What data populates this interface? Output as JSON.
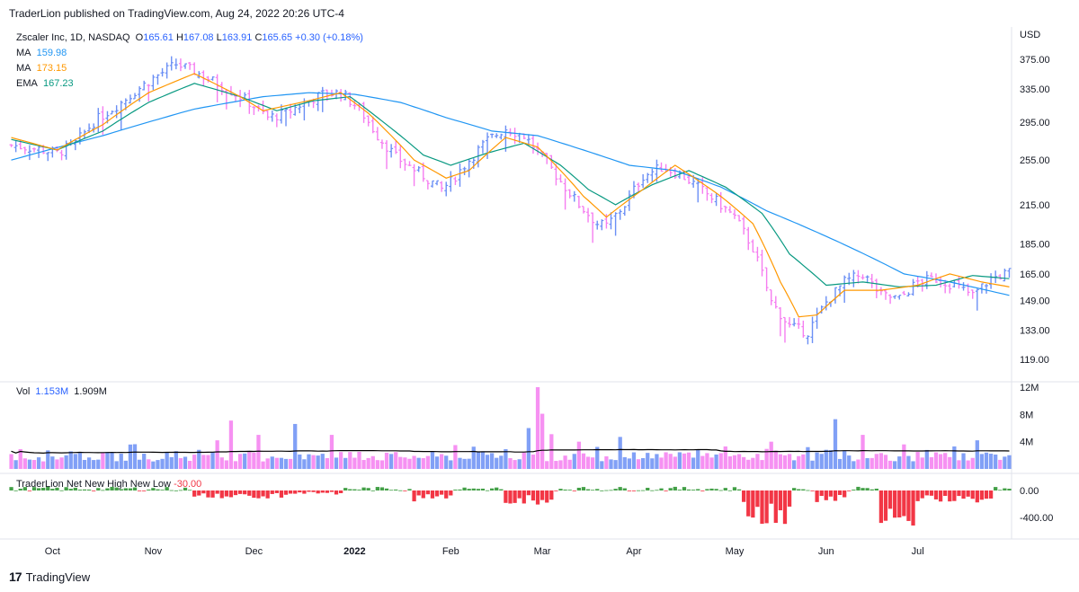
{
  "header": {
    "published": "TraderLion published on TradingView.com, Aug 24, 2022 20:26 UTC-4"
  },
  "symbol": {
    "name": "Zscaler Inc, 1D, NASDAQ",
    "o_label": "O",
    "open": "165.61",
    "h_label": "H",
    "high": "167.08",
    "l_label": "L",
    "low": "163.91",
    "c_label": "C",
    "close": "165.65",
    "change": "+0.30 (+0.18%)"
  },
  "indicators": [
    {
      "label": "MA",
      "value": "159.98",
      "color": "#2196f3"
    },
    {
      "label": "MA",
      "value": "173.15",
      "color": "#ff9800"
    },
    {
      "label": "EMA",
      "value": "167.23",
      "color": "#089981"
    }
  ],
  "volume": {
    "label": "Vol",
    "value1": "1.153M",
    "value2": "1.909M"
  },
  "nnhl": {
    "label": "TraderLion Net New High New Low",
    "value": "-30.00"
  },
  "currency": "USD",
  "footer": {
    "brand": "TradingView",
    "mark": "17"
  },
  "colors": {
    "up": "#6b8ff5",
    "down": "#f57ef0",
    "ma50": "#2196f3",
    "ma10": "#ff9800",
    "ema21": "#089981",
    "posbar": "#43a047",
    "negbar": "#f23645",
    "volma": "#000000"
  },
  "chart_data": {
    "type": "ohlc",
    "title": "Zscaler Inc, 1D, NASDAQ",
    "price_axis": {
      "ticks": [
        375.0,
        335.0,
        295.0,
        255.0,
        215.0,
        185.0,
        165.0,
        149.0,
        133.0,
        119.0
      ],
      "labels": [
        "375.00",
        "335.00",
        "295.00",
        "255.00",
        "215.00",
        "185.00",
        "165.00",
        "149.00",
        "133.00",
        "119.00"
      ],
      "scale": "log"
    },
    "volume_axis": {
      "ticks": [
        12,
        8,
        4
      ],
      "labels": [
        "12M",
        "8M",
        "4M"
      ]
    },
    "nnhl_axis": {
      "ticks": [
        0,
        -400
      ],
      "labels": [
        "0.00",
        "-400.00"
      ]
    },
    "x_axis": {
      "labels": [
        "Oct",
        "Nov",
        "Dec",
        "2022",
        "Feb",
        "Mar",
        "Apr",
        "May",
        "Jun",
        "Jul"
      ],
      "bar_index": [
        9,
        31,
        53,
        75,
        96,
        116,
        136,
        158,
        178,
        198
      ]
    },
    "price_anchors": [
      [
        0,
        270
      ],
      [
        6,
        266
      ],
      [
        10,
        262
      ],
      [
        14,
        272
      ],
      [
        18,
        295
      ],
      [
        24,
        318
      ],
      [
        30,
        345
      ],
      [
        36,
        368
      ],
      [
        40,
        358
      ],
      [
        44,
        345
      ],
      [
        48,
        332
      ],
      [
        52,
        318
      ],
      [
        56,
        300
      ],
      [
        60,
        305
      ],
      [
        64,
        318
      ],
      [
        68,
        328
      ],
      [
        72,
        330
      ],
      [
        76,
        310
      ],
      [
        80,
        280
      ],
      [
        84,
        258
      ],
      [
        90,
        240
      ],
      [
        94,
        228
      ],
      [
        96,
        235
      ],
      [
        100,
        255
      ],
      [
        104,
        275
      ],
      [
        108,
        288
      ],
      [
        112,
        280
      ],
      [
        116,
        258
      ],
      [
        120,
        235
      ],
      [
        124,
        215
      ],
      [
        128,
        200
      ],
      [
        130,
        198
      ],
      [
        134,
        215
      ],
      [
        138,
        240
      ],
      [
        142,
        248
      ],
      [
        146,
        242
      ],
      [
        150,
        230
      ],
      [
        154,
        218
      ],
      [
        158,
        205
      ],
      [
        162,
        182
      ],
      [
        166,
        148
      ],
      [
        170,
        135
      ],
      [
        174,
        132
      ],
      [
        178,
        148
      ],
      [
        182,
        160
      ],
      [
        186,
        165
      ],
      [
        190,
        152
      ],
      [
        194,
        150
      ],
      [
        198,
        160
      ],
      [
        202,
        162
      ],
      [
        206,
        158
      ],
      [
        210,
        152
      ],
      [
        214,
        162
      ],
      [
        218,
        166
      ]
    ],
    "ma50": [
      [
        0,
        255
      ],
      [
        20,
        280
      ],
      [
        40,
        310
      ],
      [
        55,
        325
      ],
      [
        65,
        330
      ],
      [
        75,
        328
      ],
      [
        85,
        318
      ],
      [
        95,
        300
      ],
      [
        105,
        285
      ],
      [
        115,
        280
      ],
      [
        125,
        265
      ],
      [
        135,
        250
      ],
      [
        145,
        245
      ],
      [
        155,
        230
      ],
      [
        165,
        210
      ],
      [
        175,
        195
      ],
      [
        185,
        180
      ],
      [
        195,
        165
      ],
      [
        205,
        160
      ],
      [
        218,
        152
      ]
    ],
    "ma10": [
      [
        0,
        278
      ],
      [
        10,
        265
      ],
      [
        20,
        292
      ],
      [
        30,
        330
      ],
      [
        40,
        355
      ],
      [
        50,
        325
      ],
      [
        55,
        308
      ],
      [
        65,
        320
      ],
      [
        72,
        330
      ],
      [
        78,
        305
      ],
      [
        88,
        255
      ],
      [
        95,
        238
      ],
      [
        100,
        245
      ],
      [
        108,
        278
      ],
      [
        115,
        268
      ],
      [
        125,
        222
      ],
      [
        130,
        205
      ],
      [
        138,
        228
      ],
      [
        145,
        250
      ],
      [
        155,
        222
      ],
      [
        162,
        200
      ],
      [
        168,
        160
      ],
      [
        172,
        140
      ],
      [
        176,
        141
      ],
      [
        182,
        155
      ],
      [
        190,
        155
      ],
      [
        198,
        158
      ],
      [
        205,
        165
      ],
      [
        212,
        160
      ],
      [
        218,
        157
      ]
    ],
    "ema21": [
      [
        0,
        276
      ],
      [
        10,
        265
      ],
      [
        20,
        285
      ],
      [
        30,
        318
      ],
      [
        40,
        342
      ],
      [
        50,
        325
      ],
      [
        58,
        308
      ],
      [
        66,
        320
      ],
      [
        74,
        325
      ],
      [
        80,
        300
      ],
      [
        90,
        260
      ],
      [
        96,
        250
      ],
      [
        104,
        262
      ],
      [
        112,
        272
      ],
      [
        120,
        250
      ],
      [
        126,
        228
      ],
      [
        132,
        215
      ],
      [
        140,
        232
      ],
      [
        148,
        245
      ],
      [
        156,
        230
      ],
      [
        164,
        208
      ],
      [
        170,
        178
      ],
      [
        178,
        158
      ],
      [
        186,
        160
      ],
      [
        194,
        157
      ],
      [
        202,
        158
      ],
      [
        210,
        164
      ],
      [
        218,
        162
      ]
    ],
    "volume_series_million": "per-bar volumes, ~1.0-4.5M typical with spikes near Dec (7M), Mar (12M), Jun (6M)",
    "nnhl_series": "per-bar net new high/low values in range approximately -520 to 50"
  }
}
